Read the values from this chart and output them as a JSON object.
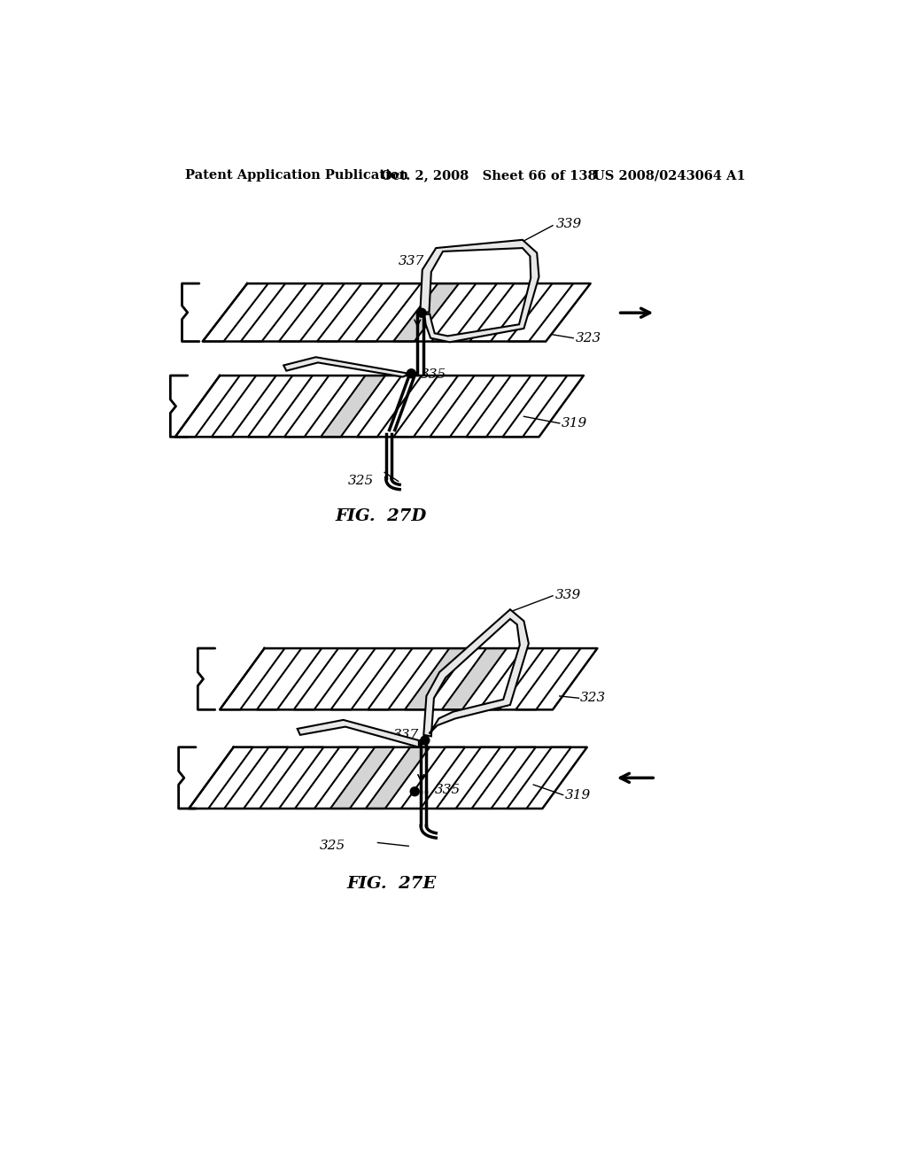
{
  "background_color": "#ffffff",
  "header_left": "Patent Application Publication",
  "header_mid": "Oct. 2, 2008   Sheet 66 of 138",
  "header_right": "US 2008/0243064 A1",
  "fig1_label": "FIG.  27D",
  "fig2_label": "FIG.  27E",
  "line_color": "#000000",
  "hatch_color": "#aaaaaa",
  "fill_light": "#d4d4d4"
}
